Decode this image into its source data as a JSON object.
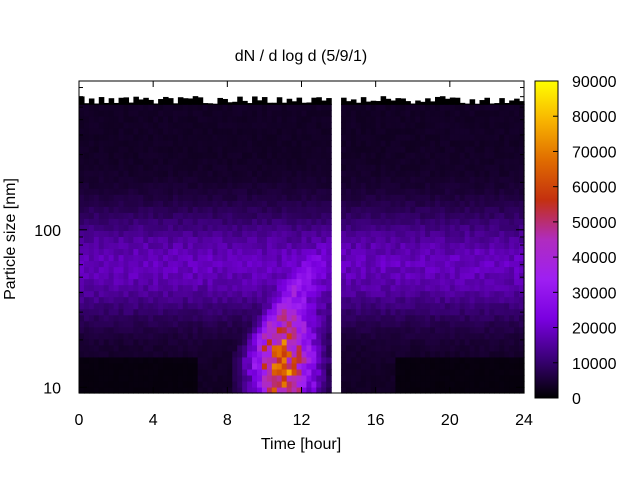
{
  "chart_data": {
    "type": "heatmap",
    "title": "dN / d log d (5/9/1)",
    "xlabel": "Time [hour]",
    "ylabel": "Particle size [nm]",
    "xlim": [
      0,
      24
    ],
    "x_ticks": [
      0,
      4,
      8,
      12,
      16,
      20,
      24
    ],
    "x_tick_labels": [
      "0",
      "4",
      "8",
      "12",
      "16",
      "20",
      "24"
    ],
    "y_scale": "log",
    "ylim": [
      9.2,
      880
    ],
    "y_ticks": [
      10,
      100
    ],
    "y_tick_labels": [
      "10",
      "100"
    ],
    "colorbar": {
      "range": [
        0,
        90000
      ],
      "ticks": [
        0,
        10000,
        20000,
        30000,
        40000,
        50000,
        60000,
        70000,
        80000,
        90000
      ],
      "tick_labels": [
        "0",
        "10000",
        "20000",
        "30000",
        "40000",
        "50000",
        "60000",
        "70000",
        "80000",
        "90000"
      ],
      "palette": [
        "#000000",
        "#3b0078",
        "#7a00e0",
        "#9e1ff2",
        "#b02cbe",
        "#c4300f",
        "#e06c00",
        "#f8b400",
        "#ffff00"
      ]
    },
    "data_gap_hours": [
      13.6,
      14.2
    ],
    "size_ceiling_nm": 630,
    "features": [
      {
        "description": "Aitken/accumulation mode band",
        "size_nm": 60,
        "level": 15000
      },
      {
        "description": "Nucleation burst",
        "time_hours": [
          8.5,
          13.5
        ],
        "size_nm": [
          10,
          45
        ],
        "peak_level": 62000
      }
    ],
    "grid": false,
    "legend": "colorbar-right"
  }
}
